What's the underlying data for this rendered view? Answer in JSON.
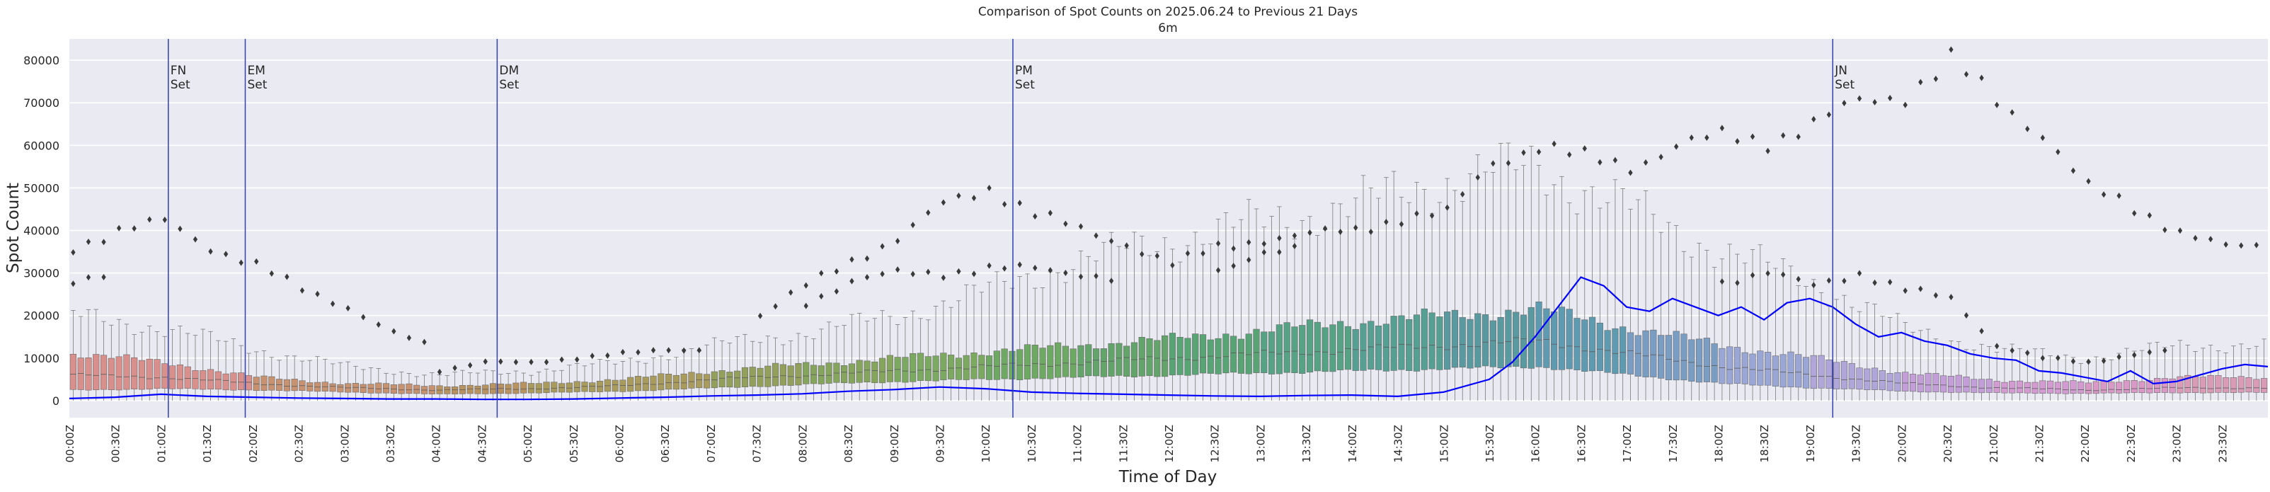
{
  "chart_data": {
    "type": "box",
    "title": "Comparison of Spot Counts on 2025.06.24 to Previous 21 Days",
    "subtitle": "6m",
    "xlabel": "Time of Day",
    "ylabel": "Spot Count",
    "ylim": [
      -4000,
      85000
    ],
    "yticks": [
      0,
      10000,
      20000,
      30000,
      40000,
      50000,
      60000,
      70000,
      80000
    ],
    "ytick_labels": [
      "0",
      "10000",
      "20000",
      "30000",
      "40000",
      "50000",
      "60000",
      "70000",
      "80000"
    ],
    "grid": true,
    "bins_per_hour": 12,
    "xtick_labels": [
      "00:00Z",
      "00:30Z",
      "01:00Z",
      "01:30Z",
      "02:00Z",
      "02:30Z",
      "03:00Z",
      "03:30Z",
      "04:00Z",
      "04:30Z",
      "05:00Z",
      "05:30Z",
      "06:00Z",
      "06:30Z",
      "07:00Z",
      "07:30Z",
      "08:00Z",
      "08:30Z",
      "09:00Z",
      "09:30Z",
      "10:00Z",
      "10:30Z",
      "11:00Z",
      "11:30Z",
      "12:00Z",
      "12:30Z",
      "13:00Z",
      "13:30Z",
      "14:00Z",
      "14:30Z",
      "15:00Z",
      "15:30Z",
      "16:00Z",
      "16:30Z",
      "17:00Z",
      "17:30Z",
      "18:00Z",
      "18:30Z",
      "19:00Z",
      "19:30Z",
      "20:00Z",
      "20:30Z",
      "21:00Z",
      "21:30Z",
      "22:00Z",
      "22:30Z",
      "23:00Z",
      "23:30Z"
    ],
    "box_colors_by_hour": [
      "#d98f8b",
      "#d98f8b",
      "#c89270",
      "#c89270",
      "#b9935f",
      "#a99b5b",
      "#a99b5b",
      "#93a05b",
      "#86a55c",
      "#7aa95f",
      "#6ea964",
      "#62a469",
      "#58a474",
      "#55a285",
      "#559f93",
      "#589aa0",
      "#5e9bb0",
      "#7a9dc4",
      "#9aa6d6",
      "#b0a6da",
      "#c39ed8",
      "#d49ad2",
      "#d998c5",
      "#d99bb5"
    ],
    "box_stats_hourly": {
      "hours": [
        "00",
        "01",
        "02",
        "03",
        "04",
        "05",
        "06",
        "07",
        "08",
        "09",
        "10",
        "11",
        "12",
        "13",
        "14",
        "15",
        "16",
        "17",
        "18",
        "19",
        "20",
        "21",
        "22",
        "23"
      ],
      "median": [
        6000,
        5500,
        4000,
        3000,
        2500,
        2800,
        3500,
        5000,
        6000,
        7000,
        8000,
        9000,
        10000,
        11000,
        12000,
        13000,
        14000,
        11000,
        8000,
        6000,
        4000,
        3000,
        2500,
        3000
      ],
      "q1": [
        2500,
        2800,
        2500,
        2000,
        1500,
        1800,
        2200,
        3000,
        3800,
        4500,
        5000,
        5500,
        6000,
        6500,
        7000,
        7500,
        8000,
        6000,
        4000,
        3000,
        2200,
        1800,
        1700,
        1900
      ],
      "q3": [
        11000,
        9000,
        5500,
        4000,
        3500,
        4000,
        5000,
        7000,
        8500,
        10000,
        11500,
        13000,
        14500,
        16500,
        18500,
        20000,
        21500,
        17000,
        13000,
        10000,
        6500,
        4800,
        4200,
        5500
      ],
      "whisker_high": [
        20000,
        17000,
        12000,
        8000,
        6000,
        7000,
        9000,
        13000,
        16000,
        20000,
        26000,
        33000,
        38000,
        42000,
        46000,
        52000,
        55000,
        45000,
        35000,
        28000,
        17000,
        12000,
        10000,
        13000
      ]
    },
    "outlier_bands": {
      "upper": {
        "hours": [
          0,
          0.5,
          1,
          1.5,
          2,
          2.5,
          3,
          3.5,
          4,
          4.5,
          5,
          5.5,
          6,
          6.5,
          7,
          7.5,
          8,
          8.5,
          9,
          9.5,
          10,
          10.5,
          11,
          11.5,
          12,
          12.5,
          13,
          13.5,
          14,
          14.5,
          15,
          15.5,
          16,
          16.5,
          17,
          17.5,
          18,
          18.5,
          19,
          19.5,
          20,
          20.5,
          21,
          21.5,
          22,
          22.5,
          23,
          23.5
        ],
        "values": [
          36000,
          40000,
          42000,
          36000,
          32000,
          26000,
          22000,
          16000,
          12000,
          null,
          null,
          null,
          null,
          null,
          null,
          20000,
          27000,
          33000,
          38000,
          46000,
          50000,
          44000,
          40000,
          37000,
          32000,
          36000,
          38000,
          39000,
          40000,
          43000,
          44000,
          56000,
          60000,
          57000,
          55000,
          60000,
          62000,
          61000,
          65000,
          70000,
          72000,
          80000,
          70000,
          63000,
          50000,
          45000,
          40000,
          36000
        ]
      },
      "lower": {
        "hours": [
          0,
          0.5,
          1,
          1.5,
          2,
          2.5,
          3,
          3.5,
          4,
          4.5,
          5,
          5.5,
          6,
          6.5,
          7,
          7.5,
          8,
          8.5,
          9,
          9.5,
          10,
          10.5,
          11,
          11.5,
          12,
          12.5,
          13,
          13.5,
          14,
          14.5,
          15,
          15.5,
          16,
          16.5,
          17,
          17.5,
          18,
          18.5,
          19,
          19.5,
          20,
          20.5,
          21,
          21.5,
          22,
          22.5,
          23,
          23.5
        ],
        "values": [
          28000,
          29000,
          null,
          null,
          null,
          null,
          null,
          null,
          7000,
          9000,
          9000,
          10000,
          11000,
          12000,
          12000,
          null,
          23000,
          28000,
          30000,
          30000,
          31000,
          31000,
          30000,
          28000,
          null,
          31000,
          34000,
          36000,
          null,
          null,
          null,
          null,
          null,
          null,
          null,
          null,
          28000,
          30000,
          27000,
          30000,
          26000,
          24000,
          13000,
          10000,
          9000,
          11000,
          12000,
          null
        ]
      }
    },
    "series": [
      {
        "name": "2025.06.24",
        "color": "#0000ff",
        "hours": [
          0,
          0.5,
          1,
          1.5,
          2,
          2.5,
          3,
          3.5,
          4,
          4.5,
          5,
          5.5,
          6,
          6.5,
          7,
          7.5,
          8,
          8.5,
          9,
          9.5,
          10,
          10.5,
          11,
          11.5,
          12,
          12.5,
          13,
          13.5,
          14,
          14.5,
          15,
          15.5,
          15.75,
          16,
          16.25,
          16.5,
          16.75,
          17,
          17.25,
          17.5,
          17.75,
          18,
          18.25,
          18.5,
          18.75,
          19,
          19.25,
          19.5,
          19.75,
          20,
          20.25,
          20.5,
          20.75,
          21,
          21.25,
          21.5,
          21.75,
          22,
          22.25,
          22.5,
          22.75,
          23,
          23.25,
          23.5,
          23.75,
          24
        ],
        "values": [
          500,
          800,
          1500,
          1000,
          800,
          600,
          500,
          400,
          400,
          300,
          300,
          400,
          600,
          800,
          1100,
          1300,
          1600,
          2200,
          2600,
          3200,
          2800,
          2000,
          1700,
          1500,
          1300,
          1100,
          1000,
          1200,
          1300,
          1000,
          2000,
          5000,
          9000,
          15000,
          22000,
          29000,
          27000,
          22000,
          21000,
          24000,
          22000,
          20000,
          22000,
          19000,
          23000,
          24000,
          22000,
          18000,
          15000,
          16000,
          14000,
          13000,
          11000,
          10000,
          9500,
          7000,
          6500,
          5500,
          4500,
          7000,
          4000,
          4500,
          6000,
          7500,
          8500,
          8000
        ]
      }
    ],
    "vlines": [
      {
        "hour": 1.08,
        "label": [
          "FN",
          "Set"
        ]
      },
      {
        "hour": 1.92,
        "label": [
          "EM",
          "Set"
        ]
      },
      {
        "hour": 4.67,
        "label": [
          "DM",
          "Set"
        ]
      },
      {
        "hour": 10.3,
        "label": [
          "PM",
          "Set"
        ]
      },
      {
        "hour": 19.25,
        "label": [
          "JN",
          "Set"
        ]
      }
    ]
  }
}
